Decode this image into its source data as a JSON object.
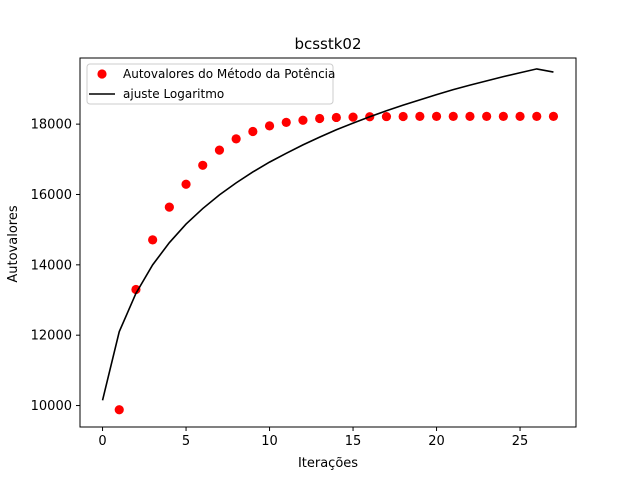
{
  "chart_data": {
    "type": "scatter",
    "title": "bcsstk02",
    "xlabel": "Iterações",
    "ylabel": "Autovalores",
    "xlim": [
      -1.35,
      28.35
    ],
    "ylim": [
      9390,
      19880
    ],
    "xticks": [
      0,
      5,
      10,
      15,
      20,
      25
    ],
    "yticks": [
      10000,
      12000,
      14000,
      16000,
      18000
    ],
    "grid": false,
    "legend_position": "top-left",
    "series": [
      {
        "name": "Autovalores do Método da Potência",
        "kind": "scatter",
        "color": "#ff0000",
        "x": [
          1,
          2,
          3,
          4,
          5,
          6,
          7,
          8,
          9,
          10,
          11,
          12,
          13,
          14,
          15,
          16,
          17,
          18,
          19,
          20,
          21,
          22,
          23,
          24,
          25,
          26,
          27
        ],
        "y": [
          9880,
          13300,
          14710,
          15640,
          16290,
          16830,
          17260,
          17580,
          17790,
          17950,
          18050,
          18110,
          18160,
          18190,
          18200,
          18210,
          18215,
          18218,
          18220,
          18220,
          18220,
          18220,
          18220,
          18220,
          18220,
          18220,
          18220
        ]
      },
      {
        "name": "ajuste Logaritmo",
        "kind": "line",
        "color": "#000000",
        "x": [
          0,
          1,
          2,
          3,
          4,
          5,
          6,
          7,
          8,
          9,
          10,
          11,
          12,
          13,
          14,
          15,
          16,
          17,
          18,
          19,
          20,
          21,
          22,
          23,
          24,
          25,
          26,
          27
        ],
        "y": [
          10150,
          12100,
          13190,
          14000,
          14630,
          15160,
          15600,
          15990,
          16330,
          16640,
          16920,
          17170,
          17410,
          17630,
          17840,
          18030,
          18210,
          18380,
          18540,
          18690,
          18840,
          18980,
          19110,
          19230,
          19350,
          19460,
          19570,
          19480
        ]
      }
    ]
  }
}
